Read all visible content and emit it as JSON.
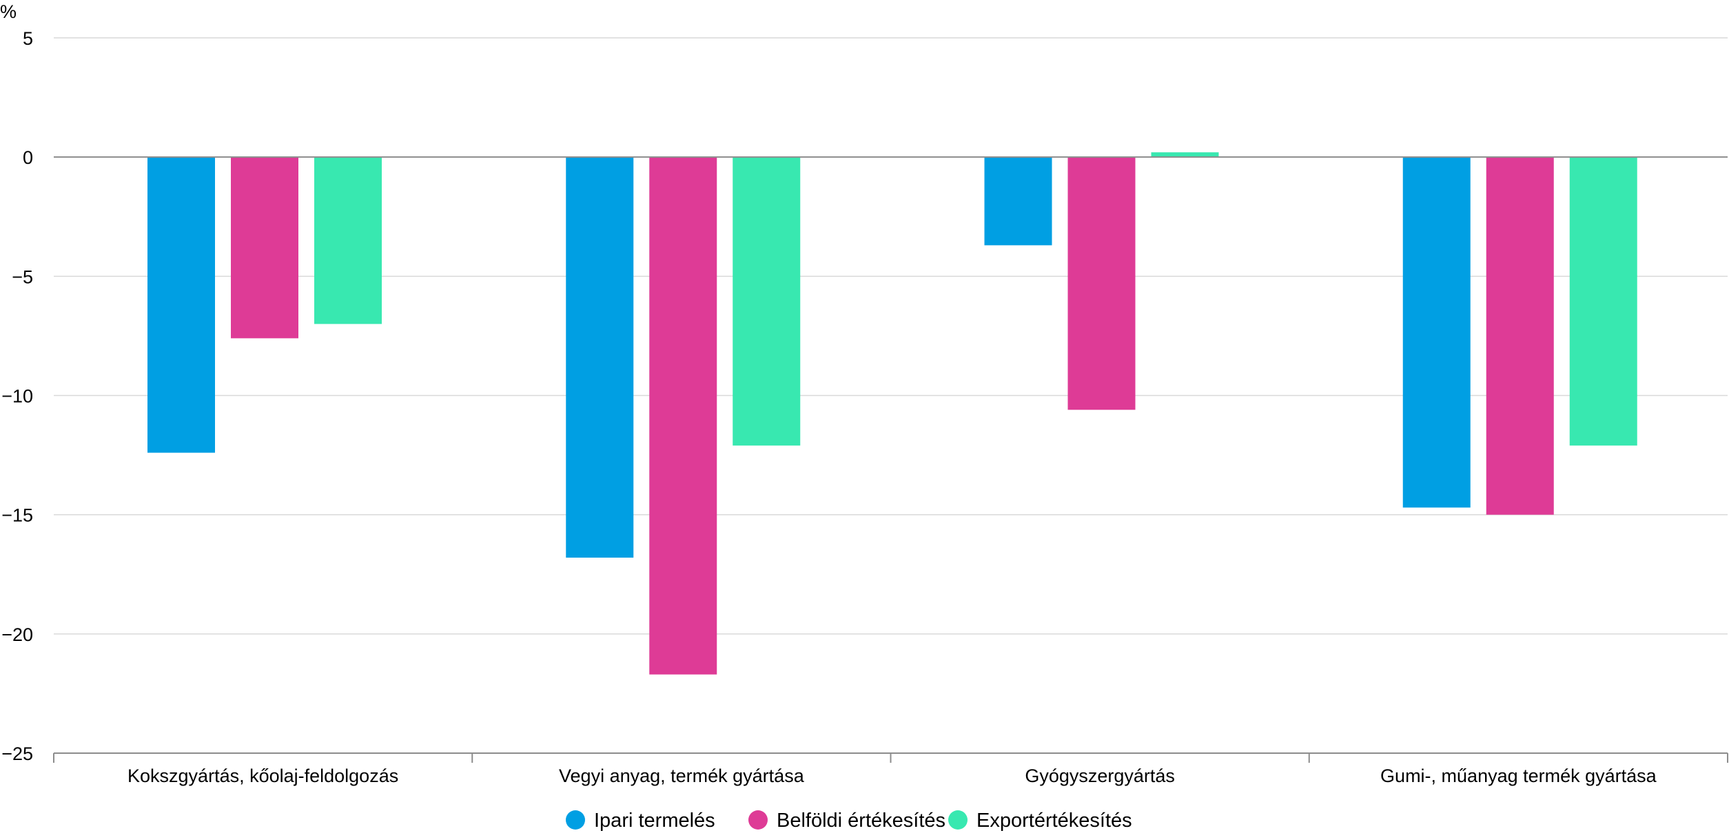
{
  "chart_data": {
    "type": "bar",
    "unit_label": "%",
    "categories": [
      "Kokszgyártás, kőolaj-feldolgozás",
      "Vegyi anyag, termék gyártása",
      "Gyógyszergyártás",
      "Gumi-, műanyag termék gyártása"
    ],
    "series": [
      {
        "name": "Ipari termelés",
        "color": "#009FE3",
        "values": [
          -12.4,
          -16.8,
          -3.7,
          -14.7
        ]
      },
      {
        "name": "Belföldi értékesítés",
        "color": "#DE3B96",
        "values": [
          -7.6,
          -21.7,
          -10.6,
          -15.0
        ]
      },
      {
        "name": "Exportértékesítés",
        "color": "#38E8B0",
        "values": [
          -7.0,
          -12.1,
          0.2,
          -12.1
        ]
      }
    ],
    "ylim": [
      -25,
      5
    ],
    "yticks": [
      5,
      0,
      -5,
      -10,
      -15,
      -20,
      -25
    ],
    "ytick_labels": [
      "5",
      "0",
      "−5",
      "−10",
      "−15",
      "−20",
      "−25"
    ],
    "grid": true,
    "legend_position": "bottom"
  }
}
